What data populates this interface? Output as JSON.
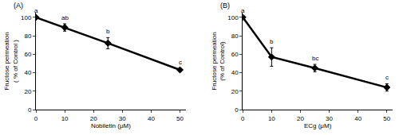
{
  "chart_data": [
    {
      "type": "line",
      "panel_label": "(A)",
      "x_label": "Nobiletin (μM)",
      "y_label": "Fructose permeation\n( % of Control )",
      "x": [
        0,
        10,
        25,
        50
      ],
      "values": [
        100,
        89,
        72,
        43
      ],
      "errors": [
        1,
        4,
        6,
        1.5
      ],
      "point_labels": [
        "a",
        "ab",
        "b",
        "c"
      ],
      "color": "#000000",
      "marker": "diamond",
      "line_style": "solid",
      "xlim": [
        0,
        52
      ],
      "xticks": [
        0,
        10,
        20,
        30,
        40,
        50
      ],
      "ylim": [
        0,
        105
      ],
      "yticks": [
        0,
        20,
        40,
        60,
        80,
        100
      ],
      "grid": false
    },
    {
      "type": "line",
      "panel_label": "(B)",
      "x_label": "ECg (μM)",
      "y_label": "Fructose permeation\n(% of Control)",
      "x": [
        0,
        10,
        25,
        50
      ],
      "values": [
        100,
        57,
        45,
        24
      ],
      "errors": [
        0.5,
        10,
        4,
        4
      ],
      "point_labels": [
        "a",
        "b",
        "bc",
        "c"
      ],
      "color": "#000000",
      "marker": "diamond",
      "line_style": "solid",
      "xlim": [
        0,
        52
      ],
      "xticks": [
        0,
        10,
        20,
        30,
        40,
        50
      ],
      "ylim": [
        0,
        105
      ],
      "yticks": [
        0,
        20,
        40,
        60,
        80,
        100
      ],
      "grid": false
    }
  ]
}
